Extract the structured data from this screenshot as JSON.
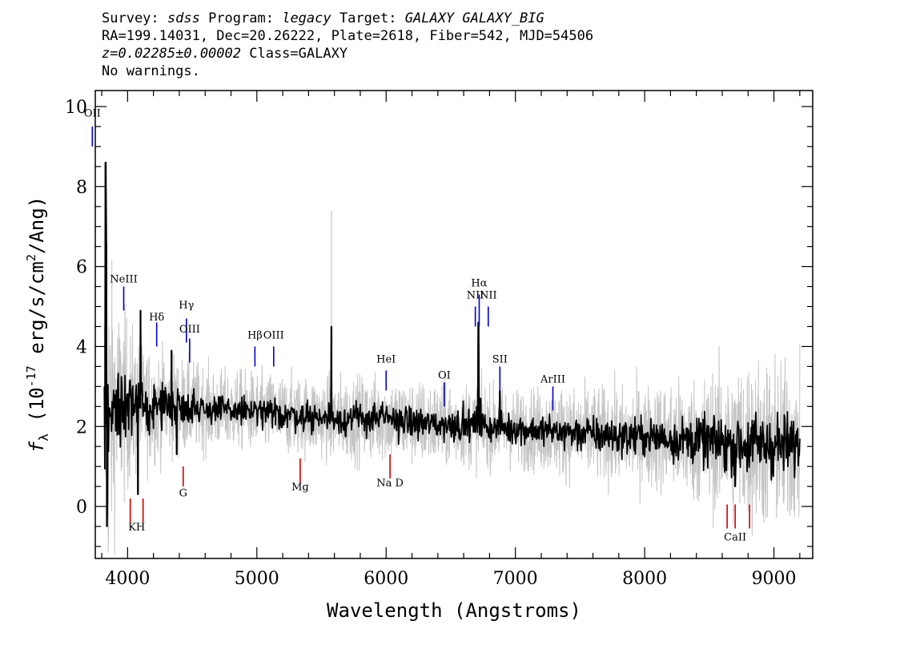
{
  "header": {
    "line1": {
      "survey_label": "Survey: ",
      "survey": "sdss",
      "program_label": " Program: ",
      "program": "legacy",
      "target_label": " Target: ",
      "target": "GALAXY GALAXY_BIG"
    },
    "line2": "RA=199.14031, Dec=20.26222, Plate=2618, Fiber=542, MJD=54506",
    "line3": {
      "redshift": "z=0.02285±0.00002",
      "class": " Class=GALAXY"
    },
    "line4": "No warnings."
  },
  "chart_data": {
    "type": "line",
    "xlabel": "Wavelength (Angstroms)",
    "ylabel": "f_λ (10^-17 erg/s/cm^2/Ang)",
    "xlim": [
      3750,
      9300
    ],
    "ylim": [
      -1.3,
      10.4
    ],
    "x_ticks": [
      4000,
      5000,
      6000,
      7000,
      8000,
      9000
    ],
    "y_ticks": [
      0,
      2,
      4,
      6,
      8,
      10
    ],
    "series": [
      {
        "role": "flux-error-envelope",
        "color": "#c4c4c4",
        "x": [
          3820,
          3900,
          4000,
          4100,
          4200,
          4300,
          4400,
          4500,
          4600,
          4700,
          4800,
          4900,
          5000,
          5200,
          5400,
          5600,
          5800,
          6000,
          6200,
          6400,
          6600,
          6800,
          7000,
          7200,
          7400,
          7600,
          7800,
          8000,
          8200,
          8400,
          8600,
          8800,
          9000,
          9200
        ],
        "y": [
          2.0,
          2.45,
          2.55,
          2.45,
          2.5,
          2.55,
          2.5,
          2.5,
          2.45,
          2.4,
          2.4,
          2.4,
          2.35,
          2.3,
          2.25,
          2.2,
          2.2,
          2.2,
          2.1,
          2.05,
          2.05,
          2.0,
          1.95,
          1.9,
          1.85,
          1.8,
          1.75,
          1.75,
          1.7,
          1.65,
          1.6,
          1.55,
          1.55,
          1.5
        ],
        "spread": [
          3.5,
          2.0,
          1.5,
          1.1,
          1.0,
          0.9,
          0.85,
          0.8,
          0.75,
          0.7,
          0.7,
          0.7,
          0.7,
          0.7,
          0.7,
          0.75,
          0.75,
          0.75,
          0.75,
          0.75,
          0.75,
          0.7,
          0.7,
          0.75,
          0.8,
          0.85,
          0.85,
          0.9,
          1.0,
          1.1,
          1.3,
          1.5,
          1.5,
          1.4
        ]
      },
      {
        "role": "flux",
        "color": "#000000",
        "x": [
          3820,
          3900,
          4000,
          4100,
          4200,
          4300,
          4400,
          4500,
          4600,
          4700,
          4800,
          4900,
          5000,
          5200,
          5400,
          5600,
          5800,
          6000,
          6200,
          6400,
          6600,
          6800,
          7000,
          7200,
          7400,
          7600,
          7800,
          8000,
          8200,
          8400,
          8600,
          8800,
          9000,
          9200
        ],
        "y": [
          2.0,
          2.45,
          2.55,
          2.45,
          2.5,
          2.55,
          2.5,
          2.5,
          2.45,
          2.4,
          2.4,
          2.4,
          2.35,
          2.3,
          2.25,
          2.2,
          2.2,
          2.2,
          2.1,
          2.05,
          2.05,
          2.0,
          1.95,
          1.9,
          1.85,
          1.8,
          1.75,
          1.75,
          1.7,
          1.65,
          1.6,
          1.55,
          1.55,
          1.5
        ],
        "peaks": [
          {
            "x": 3830,
            "y": 8.6
          },
          {
            "x": 3835,
            "y": 6.6
          },
          {
            "x": 3840,
            "y": -0.5
          },
          {
            "x": 4100,
            "y": 4.9
          },
          {
            "x": 4080,
            "y": 0.3
          },
          {
            "x": 4340,
            "y": 3.9
          },
          {
            "x": 4380,
            "y": 1.3
          },
          {
            "x": 5577,
            "y": 4.5
          },
          {
            "x": 6714,
            "y": 4.6
          },
          {
            "x": 6730,
            "y": 2.7
          },
          {
            "x": 6880,
            "y": 2.9
          },
          {
            "x": 8700,
            "y": 0.5
          }
        ]
      }
    ],
    "emission_lines": [
      {
        "label": "OII",
        "x": 3727,
        "y_label": 9.75,
        "line_top": 9.5,
        "line_bottom": 9.0
      },
      {
        "label": "NeIII",
        "x": 3970,
        "y_label": 5.6,
        "line_top": 5.5,
        "line_bottom": 4.9
      },
      {
        "label": "Hδ",
        "x": 4225,
        "y_label": 4.65,
        "line_top": 4.6,
        "line_bottom": 4.0
      },
      {
        "label": "Hγ",
        "x": 4455,
        "y_label": 4.95,
        "line_top": 4.7,
        "line_bottom": 4.1
      },
      {
        "label": "OIII",
        "x": 4480,
        "y_label": 4.35,
        "line_top": 4.2,
        "line_bottom": 3.6
      },
      {
        "label": "Hβ",
        "x": 4985,
        "y_label": 4.2,
        "line_top": 4.0,
        "line_bottom": 3.5
      },
      {
        "label": "OIII",
        "x": 5130,
        "y_label": 4.2,
        "line_top": 4.0,
        "line_bottom": 3.5
      },
      {
        "label": "HeI",
        "x": 6000,
        "y_label": 3.6,
        "line_top": 3.4,
        "line_bottom": 2.9
      },
      {
        "label": "OI",
        "x": 6450,
        "y_label": 3.2,
        "line_top": 3.1,
        "line_bottom": 2.5
      },
      {
        "label": "NII",
        "x": 6690,
        "y_label": 5.2,
        "line_top": 5.0,
        "line_bottom": 4.5
      },
      {
        "label": "Hα",
        "x": 6720,
        "y_label": 5.5,
        "line_top": 5.3,
        "line_bottom": 4.5
      },
      {
        "label": "NII",
        "x": 6790,
        "y_label": 5.2,
        "line_top": 5.0,
        "line_bottom": 4.5
      },
      {
        "label": "SII",
        "x": 6880,
        "y_label": 3.6,
        "line_top": 3.5,
        "line_bottom": 2.9
      },
      {
        "label": "ArIII",
        "x": 7290,
        "y_label": 3.1,
        "line_top": 3.0,
        "line_bottom": 2.4
      }
    ],
    "absorption_lines": [
      {
        "label": "KH",
        "x": 4070,
        "y_label": -0.6,
        "line_top": 0.2,
        "line_bottom": -0.4
      },
      {
        "label": "G",
        "x": 4430,
        "y_label": 0.25,
        "line_top": 1.0,
        "line_bottom": 0.5
      },
      {
        "label": "Mg",
        "x": 5335,
        "y_label": 0.4,
        "line_top": 1.2,
        "line_bottom": 0.6
      },
      {
        "label": "Na D",
        "x": 6030,
        "y_label": 0.5,
        "line_top": 1.3,
        "line_bottom": 0.7
      },
      {
        "label": "CaII",
        "x": 8700,
        "y_label": -0.85,
        "line_top": 0.05,
        "line_bottom": -0.55
      }
    ],
    "emission_color": "#0000c8",
    "absorption_color": "#cc0000"
  }
}
